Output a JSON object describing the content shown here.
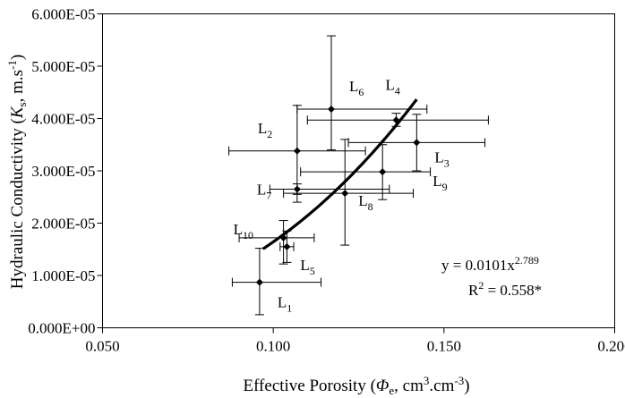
{
  "chart_data": {
    "type": "scatter",
    "xlabel": "Effective Porosity (Φe, cm³.cm⁻³)",
    "ylabel": "Hydraulic Conductivity (Ks, m.s⁻¹)",
    "xlim": [
      0.05,
      0.2
    ],
    "ylim": [
      0,
      6e-05
    ],
    "x_ticks": [
      "0.050",
      "0.100",
      "0.150",
      "0.200"
    ],
    "y_ticks": [
      "0.000E+00",
      "1.000E-05",
      "2.000E-05",
      "3.000E-05",
      "4.000E-05",
      "5.000E-05",
      "6.000E-05"
    ],
    "grid": false,
    "legend": "none",
    "points": [
      {
        "label": "L1",
        "x": 0.096,
        "y": 8.7e-06,
        "xerr": [
          0.088,
          0.114
        ],
        "yerr": [
          2.5e-06,
          1.52e-05
        ]
      },
      {
        "label": "L2",
        "x": 0.107,
        "y": 3.38e-05,
        "xerr": [
          0.087,
          0.127
        ],
        "yerr": [
          2.4e-05,
          4.25e-05
        ]
      },
      {
        "label": "L3",
        "x": 0.142,
        "y": 3.54e-05,
        "xerr": [
          0.122,
          0.162
        ],
        "yerr": [
          3e-05,
          4.08e-05
        ]
      },
      {
        "label": "L4",
        "x": 0.136,
        "y": 3.97e-05,
        "xerr": [
          0.11,
          0.163
        ],
        "yerr": [
          3.85e-05,
          4.1e-05
        ]
      },
      {
        "label": "L5",
        "x": 0.104,
        "y": 1.55e-05,
        "xerr": [
          0.102,
          0.106
        ],
        "yerr": [
          1.25e-05,
          1.85e-05
        ]
      },
      {
        "label": "L6",
        "x": 0.117,
        "y": 4.18e-05,
        "xerr": [
          0.107,
          0.145
        ],
        "yerr": [
          3.4e-05,
          5.58e-05
        ]
      },
      {
        "label": "L7",
        "x": 0.107,
        "y": 2.65e-05,
        "xerr": [
          0.099,
          0.134
        ],
        "yerr": [
          2.55e-05,
          2.75e-05
        ]
      },
      {
        "label": "L8",
        "x": 0.121,
        "y": 2.57e-05,
        "xerr": [
          0.103,
          0.141
        ],
        "yerr": [
          1.58e-05,
          3.6e-05
        ]
      },
      {
        "label": "L9",
        "x": 0.132,
        "y": 2.98e-05,
        "xerr": [
          0.108,
          0.146
        ],
        "yerr": [
          2.45e-05,
          3.5e-05
        ]
      },
      {
        "label": "L10",
        "x": 0.103,
        "y": 1.72e-05,
        "xerr": [
          0.09,
          0.112
        ],
        "yerr": [
          1.22e-05,
          2.05e-05
        ]
      }
    ],
    "trendline": {
      "type": "power",
      "equation": "y = 0.0101x^2.789",
      "coefficient": 0.0101,
      "exponent": 2.789,
      "x_range": [
        0.097,
        0.142
      ]
    },
    "equation_text": {
      "base": "y = 0.0101x",
      "exponent": "2.789"
    },
    "r2_text": {
      "base": "R",
      "sup": "2",
      "rest": " = 0.558*"
    }
  }
}
